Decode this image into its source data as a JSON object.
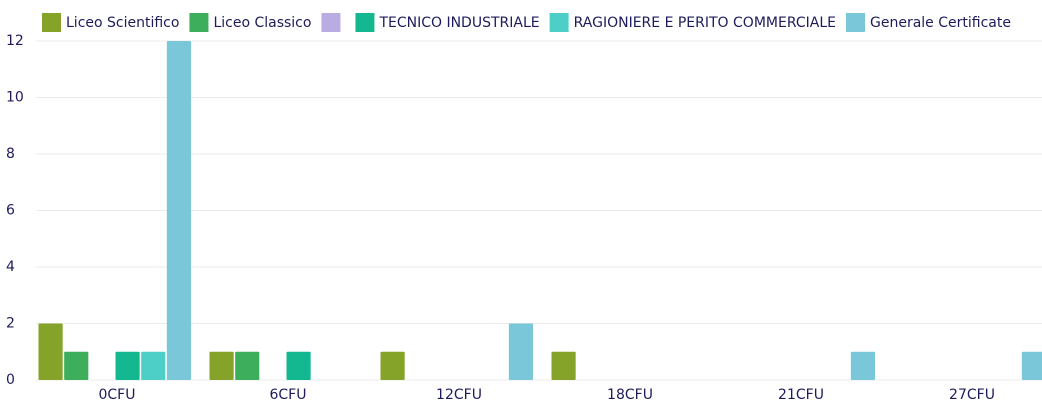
{
  "chart_data": {
    "type": "bar",
    "categories": [
      "0CFU",
      "6CFU",
      "12CFU",
      "18CFU",
      "21CFU",
      "27CFU"
    ],
    "series": [
      {
        "name": "Liceo Scientifico",
        "color": "#85a229",
        "values": [
          2,
          1,
          1,
          1,
          0,
          0
        ]
      },
      {
        "name": "Liceo Classico",
        "color": "#3cae5c",
        "values": [
          1,
          1,
          0,
          0,
          0,
          0
        ]
      },
      {
        "name": "",
        "color": "#b9ace2",
        "values": [
          0,
          0,
          0,
          0,
          0,
          0
        ]
      },
      {
        "name": "TECNICO INDUSTRIALE",
        "color": "#14b890",
        "values": [
          1,
          1,
          0,
          0,
          0,
          0
        ]
      },
      {
        "name": "RAGIONIERE E PERITO COMMERCIALE",
        "color": "#4dcfc8",
        "values": [
          1,
          0,
          0,
          0,
          0,
          0
        ]
      },
      {
        "name": "Generale Certificate",
        "color": "#7ac7d9",
        "values": [
          12,
          0,
          2,
          0,
          1,
          1
        ]
      }
    ],
    "ylim": [
      0,
      12
    ],
    "yticks": [
      0,
      2,
      4,
      6,
      8,
      10,
      12
    ],
    "grid": true,
    "legend": "top"
  }
}
